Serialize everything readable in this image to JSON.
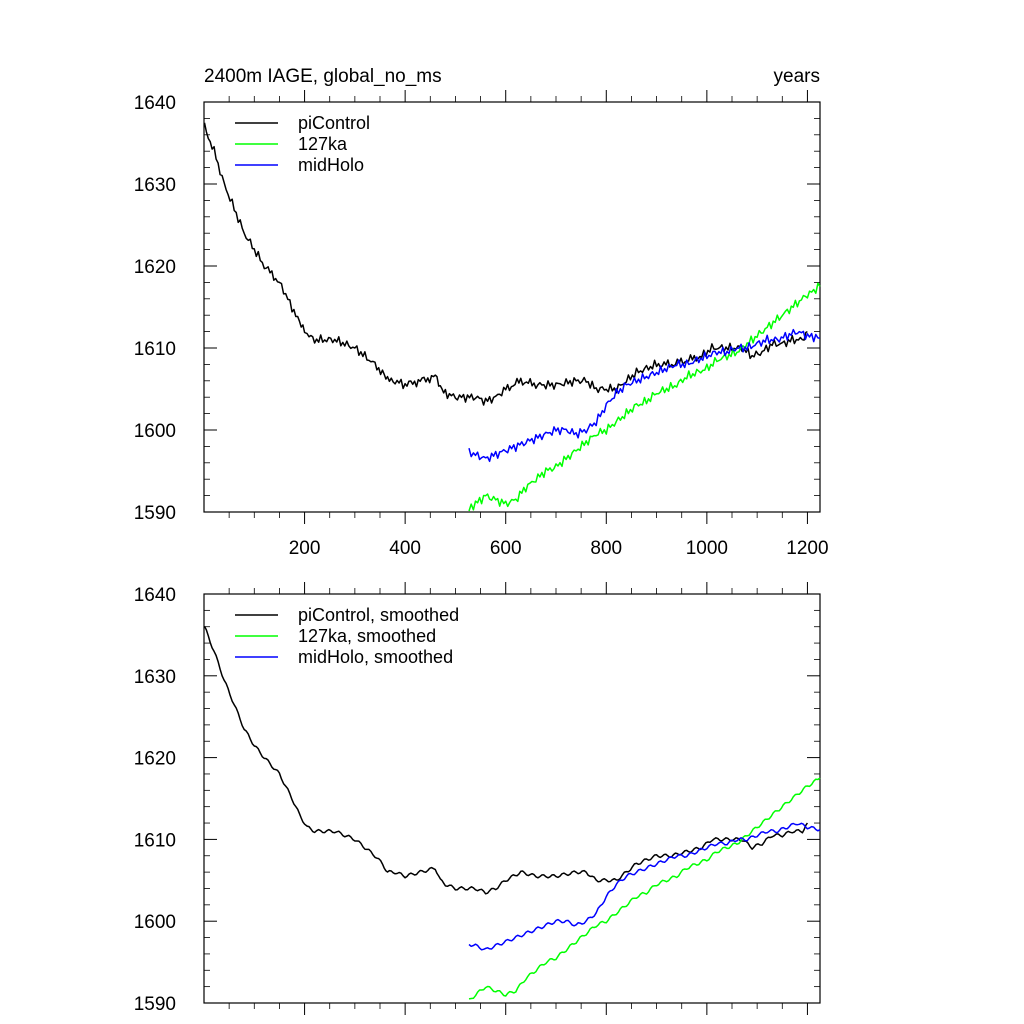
{
  "figure": {
    "title_left": "2400m IAGE, global_no_ms",
    "title_right": "years"
  },
  "chart_data": [
    {
      "type": "line",
      "panel": "top",
      "xlim": [
        0,
        1225
      ],
      "ylim": [
        1590,
        1640
      ],
      "xticks": [
        200,
        400,
        600,
        800,
        1000,
        1200
      ],
      "xtick_labels": [
        "200",
        "400",
        "600",
        "800",
        "1000",
        "1200"
      ],
      "yticks": [
        1590,
        1600,
        1610,
        1620,
        1630,
        1640
      ],
      "ytick_labels": [
        "1590",
        "1600",
        "1610",
        "1620",
        "1630",
        "1640"
      ],
      "legend_position": "top-left",
      "series": [
        {
          "name": "piControl",
          "color": "#000000",
          "x": [
            1,
            20,
            40,
            60,
            80,
            100,
            120,
            150,
            175,
            190,
            200,
            205,
            220,
            260,
            300,
            320,
            340,
            355,
            365,
            380,
            400,
            430,
            460,
            470,
            480,
            500,
            520,
            540,
            560,
            580,
            600,
            630,
            660,
            700,
            740,
            760,
            780,
            800,
            820,
            840,
            860,
            880,
            900,
            930,
            960,
            990,
            1010,
            1030,
            1050,
            1070,
            1090,
            1110,
            1130,
            1150,
            1170,
            1190,
            1200
          ],
          "values": [
            1637,
            1634,
            1630,
            1627,
            1624,
            1622,
            1620,
            1618,
            1615,
            1613,
            1612,
            1611.5,
            1611,
            1611,
            1610,
            1609,
            1608,
            1607,
            1606,
            1606,
            1605.5,
            1606,
            1606.5,
            1605,
            1604.5,
            1604,
            1604,
            1604,
            1603.5,
            1604,
            1605,
            1606,
            1605.5,
            1605.5,
            1606,
            1606,
            1605,
            1605,
            1605,
            1606,
            1607,
            1607.5,
            1608,
            1608,
            1608.5,
            1609,
            1610,
            1610,
            1610,
            1610,
            1609,
            1609.5,
            1610.5,
            1610.5,
            1611,
            1611,
            1612
          ]
        },
        {
          "name": "127ka",
          "color": "#00ff00",
          "x": [
            527,
            540,
            560,
            580,
            600,
            620,
            640,
            660,
            680,
            700,
            720,
            740,
            760,
            780,
            800,
            820,
            840,
            860,
            880,
            900,
            920,
            940,
            960,
            980,
            1000,
            1020,
            1040,
            1060,
            1080,
            1100,
            1120,
            1140,
            1160,
            1180,
            1200,
            1225
          ],
          "values": [
            1590.3,
            1591,
            1592,
            1591.5,
            1591,
            1591.5,
            1593,
            1594,
            1595,
            1595.5,
            1596.5,
            1597.5,
            1598.5,
            1599.5,
            1600,
            1601,
            1602,
            1603,
            1603.5,
            1604.5,
            1605,
            1605.5,
            1606.5,
            1607,
            1607.5,
            1608.5,
            1609,
            1609.5,
            1610.5,
            1611.5,
            1612.5,
            1613.5,
            1614.5,
            1615.5,
            1616.5,
            1617.5
          ]
        },
        {
          "name": "midHolo",
          "color": "#0000ff",
          "x": [
            527,
            540,
            560,
            580,
            600,
            620,
            640,
            660,
            680,
            700,
            720,
            740,
            760,
            780,
            800,
            820,
            840,
            860,
            880,
            900,
            920,
            940,
            960,
            980,
            1000,
            1020,
            1040,
            1060,
            1080,
            1100,
            1120,
            1140,
            1160,
            1180,
            1200,
            1225
          ],
          "values": [
            1597.2,
            1597,
            1596.5,
            1597,
            1597.5,
            1598,
            1598.5,
            1599,
            1599.5,
            1600,
            1600,
            1599.5,
            1600,
            1601,
            1603,
            1604.5,
            1605.5,
            1606,
            1606.5,
            1607,
            1607.5,
            1608,
            1608,
            1608.5,
            1609,
            1609.5,
            1609.5,
            1610,
            1610,
            1610.5,
            1611,
            1611,
            1611.5,
            1612,
            1611.5,
            1611.2
          ]
        }
      ]
    },
    {
      "type": "line",
      "panel": "bottom",
      "xlim": [
        0,
        1225
      ],
      "ylim": [
        1590,
        1640
      ],
      "xticks": [
        200,
        400,
        600,
        800,
        1000,
        1200
      ],
      "yticks": [
        1590,
        1600,
        1610,
        1620,
        1630,
        1640
      ],
      "ytick_labels": [
        "1590",
        "1600",
        "1610",
        "1620",
        "1630",
        "1640"
      ],
      "legend_position": "top-left",
      "series": [
        {
          "name": "piControl, smoothed",
          "color": "#000000",
          "x": [
            1,
            20,
            40,
            60,
            80,
            100,
            120,
            150,
            175,
            190,
            200,
            205,
            220,
            260,
            300,
            320,
            340,
            355,
            365,
            380,
            400,
            430,
            460,
            470,
            480,
            500,
            520,
            540,
            560,
            580,
            600,
            630,
            660,
            700,
            740,
            760,
            780,
            800,
            820,
            840,
            860,
            880,
            900,
            930,
            960,
            990,
            1010,
            1030,
            1050,
            1070,
            1090,
            1110,
            1130,
            1150,
            1170,
            1190,
            1200
          ],
          "values": [
            1636,
            1633,
            1629.5,
            1626.5,
            1623.5,
            1621.5,
            1620,
            1618,
            1615,
            1613,
            1612,
            1611.5,
            1611,
            1611,
            1610,
            1609,
            1608,
            1607,
            1606,
            1606,
            1605.5,
            1606,
            1606.5,
            1605,
            1604.5,
            1604,
            1604,
            1604,
            1603.5,
            1604,
            1605,
            1606,
            1605.5,
            1605.5,
            1606,
            1606,
            1605,
            1605,
            1605,
            1606,
            1607,
            1607.5,
            1608,
            1608,
            1608.5,
            1609,
            1610,
            1610,
            1610,
            1610,
            1609,
            1609.5,
            1610.5,
            1610.5,
            1611,
            1611,
            1612
          ]
        },
        {
          "name": "127ka, smoothed",
          "color": "#00ff00",
          "x": [
            527,
            540,
            560,
            580,
            600,
            620,
            640,
            660,
            680,
            700,
            720,
            740,
            760,
            780,
            800,
            820,
            840,
            860,
            880,
            900,
            920,
            940,
            960,
            980,
            1000,
            1020,
            1040,
            1060,
            1080,
            1100,
            1120,
            1140,
            1160,
            1180,
            1200,
            1225
          ],
          "values": [
            1590.3,
            1591,
            1592,
            1591.5,
            1591,
            1591.5,
            1593,
            1594,
            1595,
            1595.5,
            1596.5,
            1597.5,
            1598.5,
            1599.5,
            1600,
            1601,
            1602,
            1603,
            1603.5,
            1604.5,
            1605,
            1605.5,
            1606.5,
            1607,
            1607.5,
            1608.5,
            1609,
            1609.5,
            1610.5,
            1611.5,
            1612.5,
            1613.5,
            1614.5,
            1615.5,
            1616.5,
            1617.5
          ]
        },
        {
          "name": "midHolo, smoothed",
          "color": "#0000ff",
          "x": [
            527,
            540,
            560,
            580,
            600,
            620,
            640,
            660,
            680,
            700,
            720,
            740,
            760,
            780,
            800,
            820,
            840,
            860,
            880,
            900,
            920,
            940,
            960,
            980,
            1000,
            1020,
            1040,
            1060,
            1080,
            1100,
            1120,
            1140,
            1160,
            1180,
            1200,
            1225
          ],
          "values": [
            1597.2,
            1597,
            1596.5,
            1597,
            1597.5,
            1598,
            1598.5,
            1599,
            1599.5,
            1600,
            1600,
            1599.5,
            1600,
            1601,
            1603,
            1604.5,
            1605.5,
            1606,
            1606.5,
            1607,
            1607.5,
            1608,
            1608,
            1608.5,
            1609,
            1609.5,
            1609.5,
            1610,
            1610,
            1610.5,
            1611,
            1611,
            1611.5,
            1612,
            1611.5,
            1611.2
          ]
        }
      ]
    }
  ]
}
